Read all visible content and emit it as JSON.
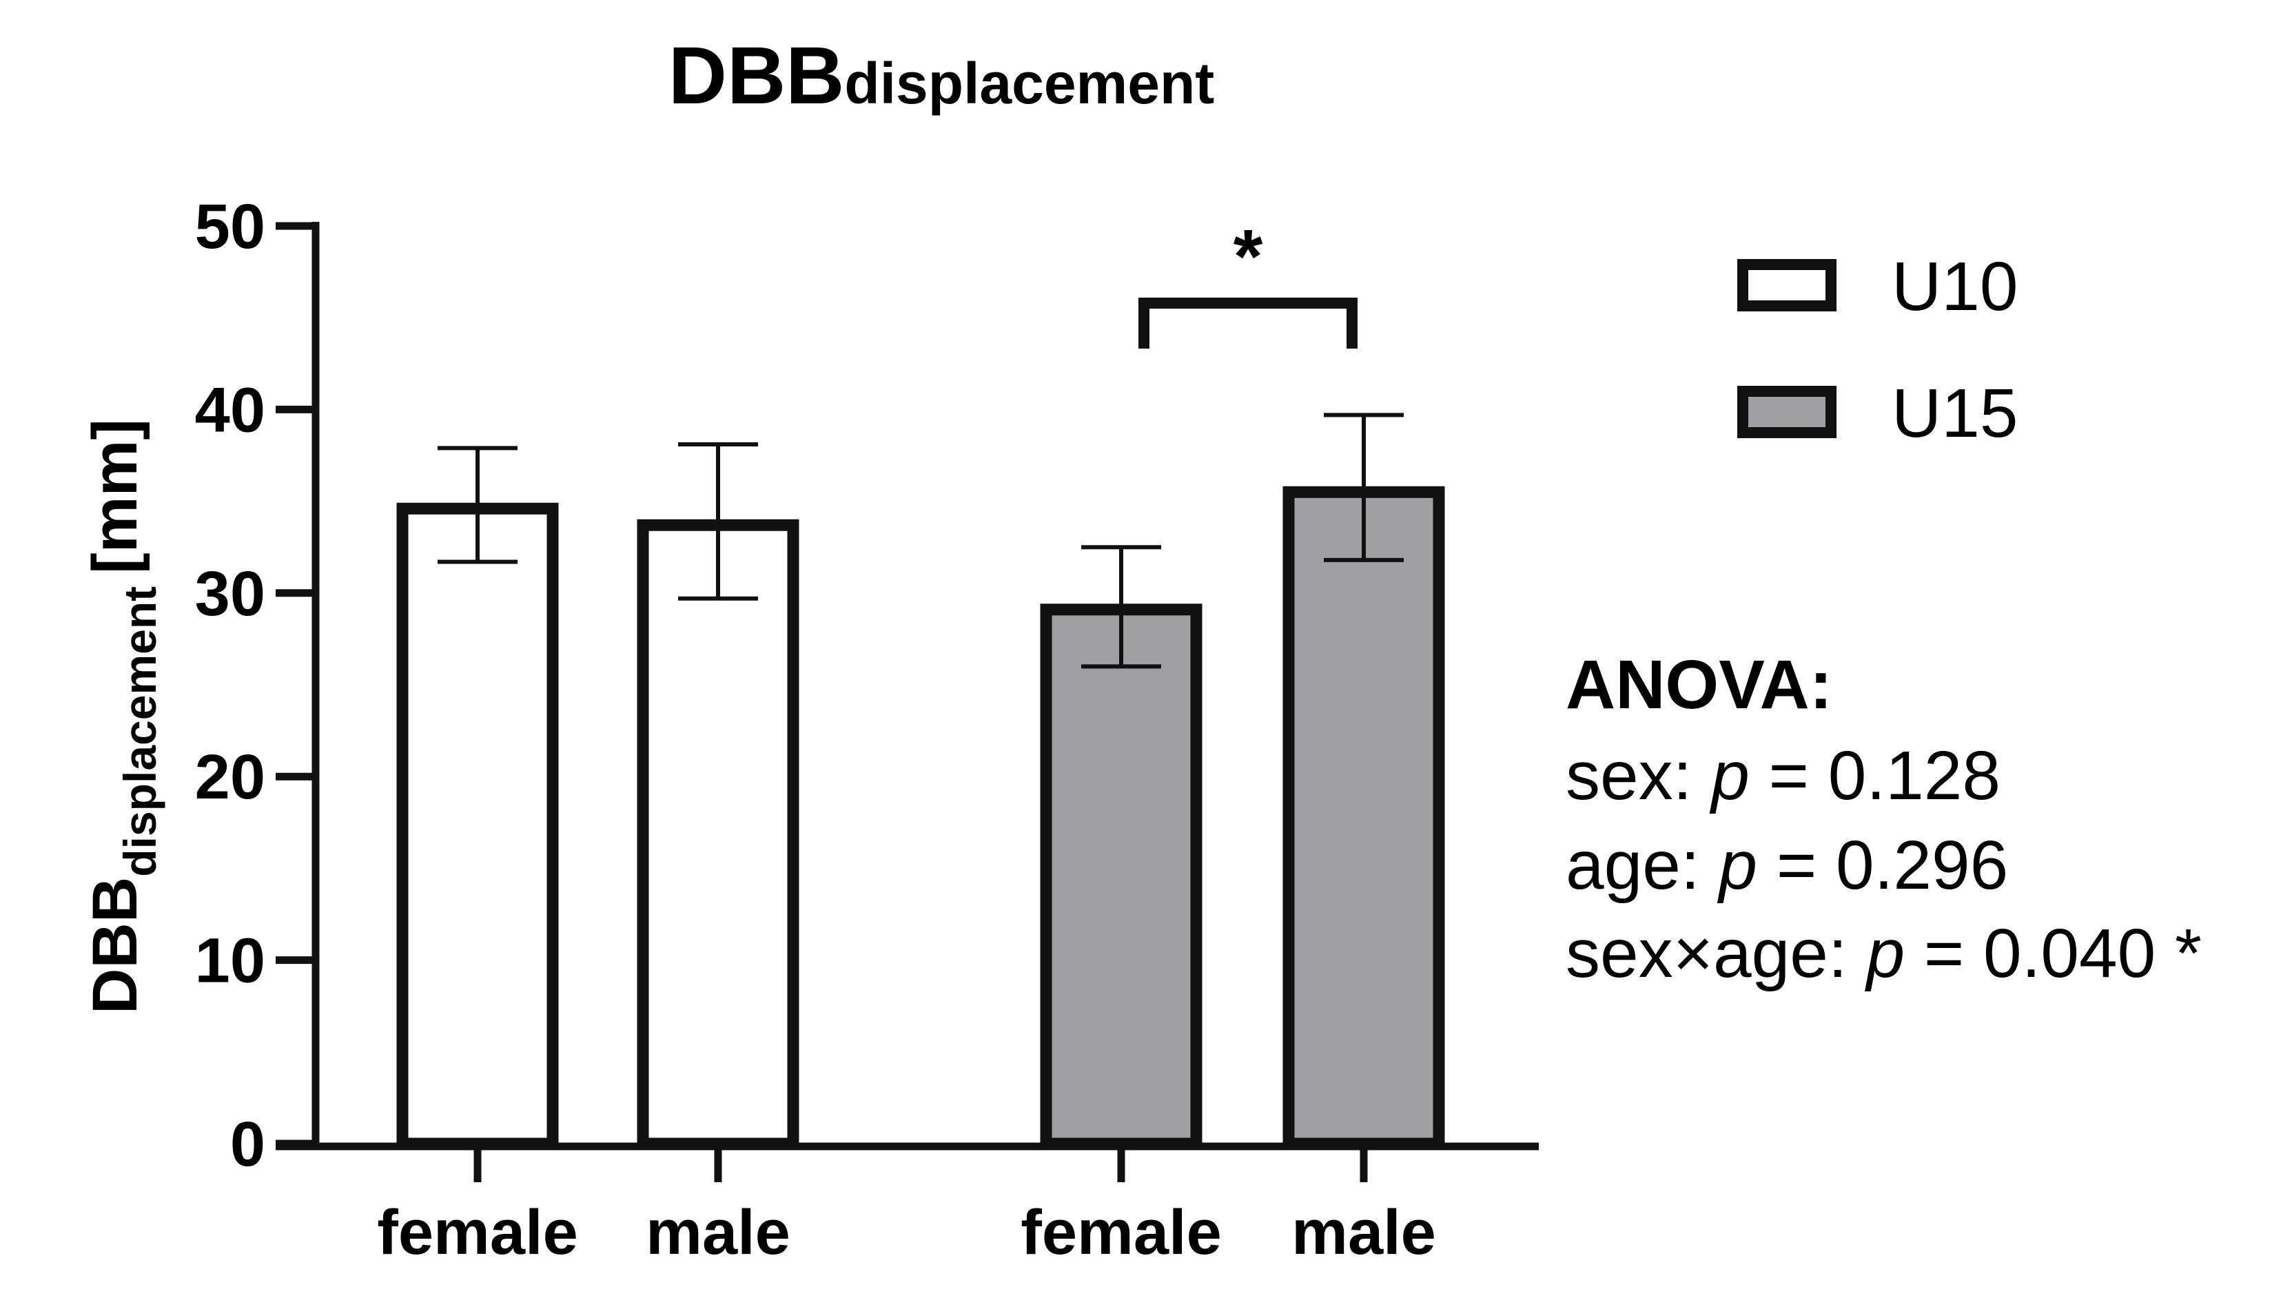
{
  "chart_data": {
    "type": "bar",
    "title_main": "DBB",
    "title_sub": "displacement",
    "ylabel_main": "DBB",
    "ylabel_sub": "displacement",
    "ylabel_unit": "[mm]",
    "ylim": [
      0,
      50
    ],
    "yticks": [
      "0",
      "10",
      "20",
      "30",
      "40",
      "50"
    ],
    "colors": {
      "U10": "#ffffff",
      "U15": "#a0a0a4",
      "stroke": "#111111"
    },
    "bars": [
      {
        "group": "U10",
        "category": "female",
        "value": 34.6,
        "err_low": 31.7,
        "err_high": 37.9
      },
      {
        "group": "U10",
        "category": "male",
        "value": 33.7,
        "err_low": 29.7,
        "err_high": 38.1
      },
      {
        "group": "U15",
        "category": "female",
        "value": 29.1,
        "err_low": 26.0,
        "err_high": 32.5
      },
      {
        "group": "U15",
        "category": "male",
        "value": 35.5,
        "err_low": 31.8,
        "err_high": 39.7
      }
    ],
    "significance": {
      "between": [
        2,
        3
      ],
      "label": "*"
    },
    "legend": [
      {
        "name": "U10",
        "label": "U10"
      },
      {
        "name": "U15",
        "label": "U15"
      }
    ],
    "legend_position": "top-right"
  },
  "anova": {
    "heading": "ANOVA:",
    "lines": [
      {
        "prefix": "sex: ",
        "p": "p",
        "suffix": " = 0.128"
      },
      {
        "prefix": "age: ",
        "p": "p",
        "suffix": " = 0.296"
      },
      {
        "prefix": "sex×age: ",
        "p": "p",
        "suffix": " = 0.040 *"
      }
    ]
  }
}
